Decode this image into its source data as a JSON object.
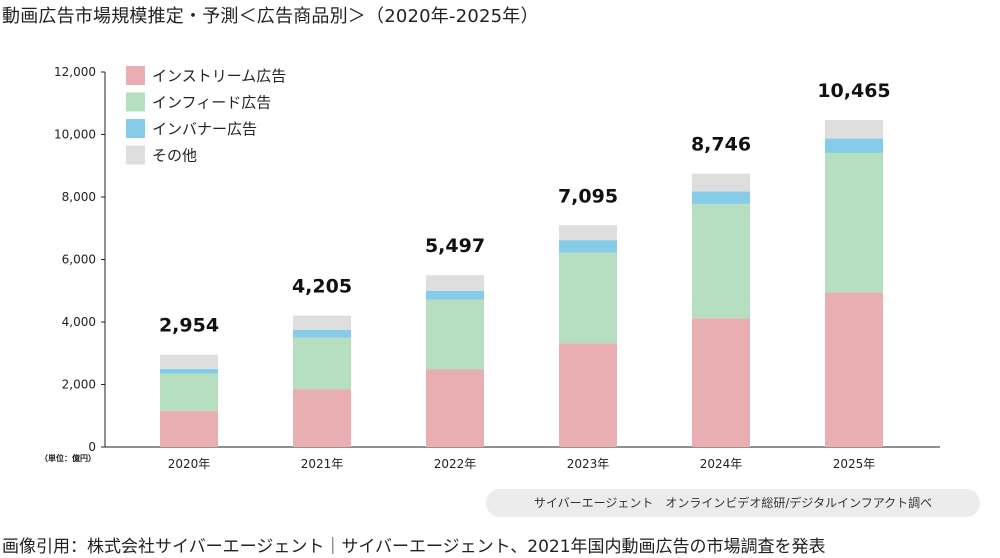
{
  "title": "動画広告市場規模推定・予測＜広告商品別＞（2020年-2025年）",
  "unit_label": "（単位：億円）",
  "source_note": "サイバーエージェント　オンラインビデオ総研/デジタルインフアクト調べ",
  "credit": "画像引用：株式会社サイバーエージェント｜サイバーエージェント、2021年国内動画広告の市場調査を発表",
  "colors": {
    "instream": "#e8aeb1",
    "infeed": "#b5dfc0",
    "inbanner": "#86cbe8",
    "other": "#dedede",
    "axis": "#222222"
  },
  "chart_data": {
    "type": "bar",
    "stacked": true,
    "categories": [
      "2020年",
      "2021年",
      "2022年",
      "2023年",
      "2024年",
      "2025年"
    ],
    "totals": [
      2954,
      4205,
      5497,
      7095,
      8746,
      10465
    ],
    "total_labels": [
      "2,954",
      "4,205",
      "5,497",
      "7,095",
      "8,746",
      "10,465"
    ],
    "series": [
      {
        "name": "インストリーム広告",
        "color_key": "instream",
        "values": [
          1150,
          1850,
          2480,
          3320,
          4120,
          4950
        ]
      },
      {
        "name": "インフィード広告",
        "color_key": "infeed",
        "values": [
          1200,
          1650,
          2240,
          2900,
          3660,
          4460
        ]
      },
      {
        "name": "インバナー広告",
        "color_key": "inbanner",
        "values": [
          150,
          250,
          280,
          400,
          400,
          460
        ]
      },
      {
        "name": "その他",
        "color_key": "other",
        "values": [
          454,
          455,
          497,
          475,
          566,
          595
        ]
      }
    ],
    "ylim": [
      0,
      12000
    ],
    "yticks": [
      0,
      2000,
      4000,
      6000,
      8000,
      10000,
      12000
    ],
    "ytick_labels": [
      "0",
      "2,000",
      "4,000",
      "6,000",
      "8,000",
      "10,000",
      "12,000"
    ],
    "legend_position": "top-left",
    "grid": false
  }
}
